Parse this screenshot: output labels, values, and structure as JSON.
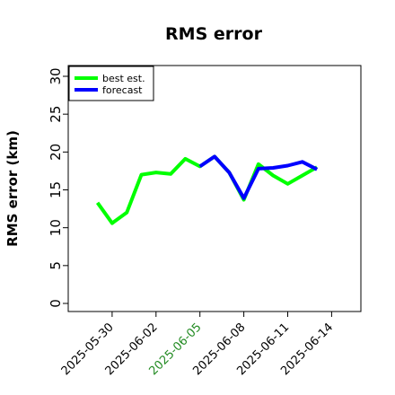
{
  "chart_data": {
    "type": "line",
    "title": "RMS error",
    "xlabel": "",
    "ylabel": "RMS error (km)",
    "ylim": [
      0,
      30
    ],
    "yticks": [
      0,
      5,
      10,
      15,
      20,
      25,
      30
    ],
    "xlim": [
      "2025-05-27",
      "2025-06-16"
    ],
    "xticks": [
      "2025-05-30",
      "2025-06-02",
      "2025-06-05",
      "2025-06-08",
      "2025-06-11",
      "2025-06-14"
    ],
    "highlighted_xtick": "2025-06-05",
    "highlight_color": "#228B22",
    "grid": false,
    "legend_position": "top-left",
    "series": [
      {
        "name": "best est.",
        "color": "#00ff00",
        "x": [
          "2025-05-29",
          "2025-05-30",
          "2025-05-31",
          "2025-06-01",
          "2025-06-02",
          "2025-06-03",
          "2025-06-04",
          "2025-06-05",
          "2025-06-06",
          "2025-06-07",
          "2025-06-08",
          "2025-06-09",
          "2025-06-10",
          "2025-06-11",
          "2025-06-12",
          "2025-06-13"
        ],
        "values": [
          13.3,
          10.6,
          12.0,
          17.0,
          17.3,
          17.1,
          19.1,
          18.1,
          19.4,
          17.3,
          13.7,
          18.4,
          16.9,
          15.8,
          16.9,
          18.0
        ]
      },
      {
        "name": "forecast",
        "color": "#0000ff",
        "x": [
          "2025-06-05",
          "2025-06-06",
          "2025-06-07",
          "2025-06-08",
          "2025-06-09",
          "2025-06-10",
          "2025-06-11",
          "2025-06-12",
          "2025-06-13"
        ],
        "values": [
          18.1,
          19.4,
          17.3,
          13.9,
          17.8,
          17.9,
          18.2,
          18.7,
          17.7
        ]
      }
    ]
  }
}
